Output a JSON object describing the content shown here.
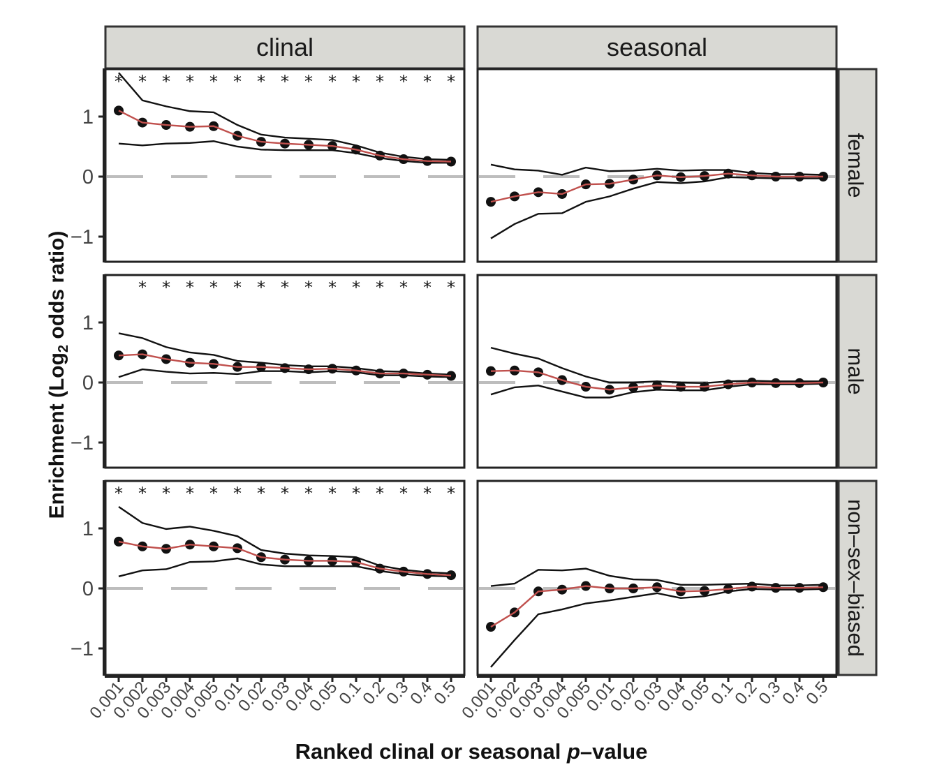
{
  "chart_data": {
    "type": "line",
    "xlabel_prefix": "Ranked clinal or seasonal ",
    "xlabel_italic": "p",
    "xlabel_suffix": "–value",
    "ylabel_prefix": "Enrichment (Log",
    "ylabel_sub": "2",
    "ylabel_suffix": " odds ratio)",
    "col_facets": [
      "clinal",
      "seasonal"
    ],
    "row_facets": [
      "female",
      "male",
      "non–sex–biased"
    ],
    "x_categories": [
      "0.001",
      "0.002",
      "0.003",
      "0.004",
      "0.005",
      "0.01",
      "0.02",
      "0.03",
      "0.04",
      "0.05",
      "0.1",
      "0.2",
      "0.3",
      "0.4",
      "0.5"
    ],
    "y_ticks": [
      1,
      0,
      -1
    ],
    "y_tick_labels": [
      "1",
      "0",
      "−1"
    ],
    "ylim": [
      -1.45,
      1.8
    ],
    "significance_marker": "*",
    "reference_line": 0,
    "colors": {
      "estimate_line": "#c0504d",
      "points": "#111111",
      "ci_lines": "#111111",
      "reference": "#bdbdbd",
      "strip_fill": "#d9d9d4"
    },
    "panels": [
      {
        "col": "clinal",
        "row": "female",
        "estimate": [
          1.1,
          0.9,
          0.86,
          0.83,
          0.84,
          0.68,
          0.58,
          0.55,
          0.53,
          0.51,
          0.45,
          0.35,
          0.29,
          0.26,
          0.25
        ],
        "upper": [
          1.73,
          1.27,
          1.17,
          1.09,
          1.07,
          0.86,
          0.7,
          0.65,
          0.63,
          0.61,
          0.52,
          0.4,
          0.33,
          0.29,
          0.28
        ],
        "lower": [
          0.55,
          0.52,
          0.55,
          0.56,
          0.59,
          0.5,
          0.45,
          0.44,
          0.44,
          0.44,
          0.39,
          0.31,
          0.26,
          0.23,
          0.23
        ],
        "significant": [
          true,
          true,
          true,
          true,
          true,
          true,
          true,
          true,
          true,
          true,
          true,
          true,
          true,
          true,
          true
        ]
      },
      {
        "col": "seasonal",
        "row": "female",
        "estimate": [
          -0.42,
          -0.33,
          -0.26,
          -0.29,
          -0.13,
          -0.12,
          -0.05,
          0.02,
          -0.01,
          0.01,
          0.05,
          0.02,
          0.0,
          0.0,
          0.0
        ],
        "upper": [
          0.2,
          0.12,
          0.1,
          0.03,
          0.15,
          0.09,
          0.1,
          0.13,
          0.1,
          0.11,
          0.11,
          0.06,
          0.04,
          0.04,
          0.03
        ],
        "lower": [
          -1.03,
          -0.79,
          -0.62,
          -0.61,
          -0.42,
          -0.33,
          -0.2,
          -0.09,
          -0.11,
          -0.08,
          -0.01,
          -0.02,
          -0.03,
          -0.03,
          -0.03
        ],
        "significant": [
          false,
          false,
          false,
          false,
          false,
          false,
          false,
          false,
          false,
          false,
          false,
          false,
          false,
          false,
          false
        ]
      },
      {
        "col": "clinal",
        "row": "male",
        "estimate": [
          0.45,
          0.47,
          0.39,
          0.33,
          0.31,
          0.26,
          0.26,
          0.24,
          0.22,
          0.23,
          0.2,
          0.15,
          0.15,
          0.13,
          0.11
        ],
        "upper": [
          0.82,
          0.74,
          0.59,
          0.5,
          0.46,
          0.36,
          0.33,
          0.29,
          0.27,
          0.27,
          0.24,
          0.19,
          0.18,
          0.15,
          0.13
        ],
        "lower": [
          0.09,
          0.22,
          0.18,
          0.15,
          0.16,
          0.14,
          0.19,
          0.19,
          0.17,
          0.19,
          0.17,
          0.12,
          0.12,
          0.1,
          0.09
        ],
        "significant": [
          false,
          true,
          true,
          true,
          true,
          true,
          true,
          true,
          true,
          true,
          true,
          true,
          true,
          true,
          true
        ]
      },
      {
        "col": "seasonal",
        "row": "male",
        "estimate": [
          0.19,
          0.2,
          0.17,
          0.04,
          -0.07,
          -0.12,
          -0.08,
          -0.05,
          -0.07,
          -0.07,
          -0.03,
          0.0,
          -0.01,
          -0.01,
          0.0
        ],
        "upper": [
          0.58,
          0.48,
          0.4,
          0.24,
          0.1,
          0.0,
          0.0,
          0.02,
          0.0,
          -0.01,
          0.02,
          0.03,
          0.02,
          0.02,
          0.02
        ],
        "lower": [
          -0.2,
          -0.08,
          -0.05,
          -0.15,
          -0.25,
          -0.25,
          -0.16,
          -0.12,
          -0.13,
          -0.13,
          -0.07,
          -0.03,
          -0.03,
          -0.03,
          -0.02
        ],
        "significant": [
          false,
          false,
          false,
          false,
          false,
          false,
          false,
          false,
          false,
          false,
          false,
          false,
          false,
          false,
          false
        ]
      },
      {
        "col": "clinal",
        "row": "non–sex–biased",
        "estimate": [
          0.78,
          0.7,
          0.66,
          0.73,
          0.7,
          0.67,
          0.52,
          0.48,
          0.46,
          0.46,
          0.44,
          0.33,
          0.28,
          0.24,
          0.22
        ],
        "upper": [
          1.36,
          1.09,
          0.99,
          1.03,
          0.96,
          0.87,
          0.64,
          0.58,
          0.55,
          0.54,
          0.52,
          0.38,
          0.31,
          0.27,
          0.25
        ],
        "lower": [
          0.2,
          0.3,
          0.32,
          0.44,
          0.45,
          0.5,
          0.4,
          0.37,
          0.37,
          0.37,
          0.37,
          0.29,
          0.24,
          0.21,
          0.2
        ],
        "significant": [
          true,
          true,
          true,
          true,
          true,
          true,
          true,
          true,
          true,
          true,
          true,
          true,
          true,
          true,
          true
        ]
      },
      {
        "col": "seasonal",
        "row": "non–sex–biased",
        "estimate": [
          -0.64,
          -0.4,
          -0.05,
          -0.02,
          0.04,
          0.0,
          0.0,
          0.02,
          -0.05,
          -0.04,
          -0.01,
          0.03,
          0.01,
          0.01,
          0.02
        ],
        "upper": [
          0.04,
          0.08,
          0.31,
          0.3,
          0.33,
          0.21,
          0.15,
          0.14,
          0.06,
          0.06,
          0.07,
          0.08,
          0.05,
          0.05,
          0.06
        ],
        "lower": [
          -1.31,
          -0.86,
          -0.43,
          -0.35,
          -0.25,
          -0.2,
          -0.14,
          -0.08,
          -0.16,
          -0.13,
          -0.05,
          -0.01,
          -0.02,
          -0.02,
          -0.01
        ],
        "significant": [
          false,
          false,
          false,
          false,
          false,
          false,
          false,
          false,
          false,
          false,
          false,
          false,
          false,
          false,
          false
        ]
      }
    ]
  }
}
